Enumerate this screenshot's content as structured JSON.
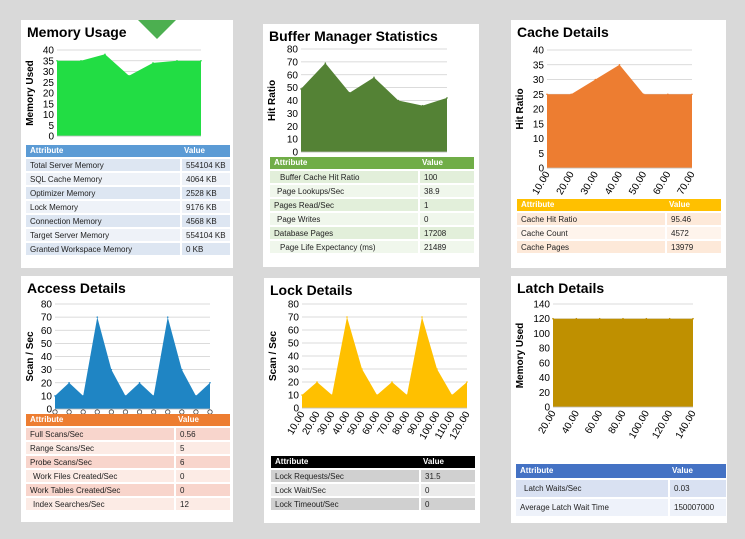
{
  "panels": {
    "memory": {
      "title": "Memory Usage",
      "accent": "#5b9bd5",
      "header": {
        "attribute": "Attribute",
        "value": "Value"
      },
      "rows": [
        {
          "attribute": "Total Server Memory",
          "value": "554104 KB"
        },
        {
          "attribute": "SQL Cache Memory",
          "value": "4064 KB"
        },
        {
          "attribute": "Optimizer Memory",
          "value": "2528 KB"
        },
        {
          "attribute": "Lock Memory",
          "value": "9176 KB"
        },
        {
          "attribute": "Connection Memory",
          "value": "4568 KB"
        },
        {
          "attribute": "Target Server Memory",
          "value": "554104 KB"
        },
        {
          "attribute": "Granted Workspace Memory",
          "value": "0 KB"
        }
      ]
    },
    "buffer": {
      "title": "Buffer Manager Statistics",
      "accent": "#70ad47",
      "header": {
        "attribute": "Attribute",
        "value": "Value"
      },
      "rows": [
        {
          "attribute": "Buffer Cache Hit Ratio",
          "value": "100"
        },
        {
          "attribute": "Page Lookups/Sec",
          "value": "38.9"
        },
        {
          "attribute": "Pages Read/Sec",
          "value": "1"
        },
        {
          "attribute": "Page Writes",
          "value": "0"
        },
        {
          "attribute": "Database Pages",
          "value": "17208"
        },
        {
          "attribute": "Page Life Expectancy (ms)",
          "value": "21489"
        }
      ]
    },
    "cache": {
      "title": "Cache Details",
      "accent": "#ffc000",
      "header": {
        "attribute": "Attribute",
        "value": "Value"
      },
      "rows": [
        {
          "attribute": "Cache Hit Ratio",
          "value": "95.46"
        },
        {
          "attribute": "Cache Count",
          "value": "4572"
        },
        {
          "attribute": "Cache Pages",
          "value": "13979"
        }
      ]
    },
    "access": {
      "title": "Access Details",
      "accent": "#ed7d31",
      "header": {
        "attribute": "Attribute",
        "value": "Value"
      },
      "rows": [
        {
          "attribute": "Full Scans/Sec",
          "value": "0.56"
        },
        {
          "attribute": "Range Scans/Sec",
          "value": "5"
        },
        {
          "attribute": "Probe Scans/Sec",
          "value": "6"
        },
        {
          "attribute": "Work Files Created/Sec",
          "value": "0"
        },
        {
          "attribute": "Work Tables Created/Sec",
          "value": "0"
        },
        {
          "attribute": "Index Searches/Sec",
          "value": "12"
        }
      ]
    },
    "lock": {
      "title": "Lock Details",
      "accent": "#000000",
      "header": {
        "attribute": "Attribute",
        "value": "Value"
      },
      "rows": [
        {
          "attribute": "Lock Requests/Sec",
          "value": "31.5"
        },
        {
          "attribute": "Lock Wait/Sec",
          "value": "0"
        },
        {
          "attribute": "Lock Timeout/Sec",
          "value": "0"
        }
      ]
    },
    "latch": {
      "title": "Latch Details",
      "accent": "#4472c4",
      "header": {
        "attribute": "Attribute",
        "value": "Value"
      },
      "rows": [
        {
          "attribute": "Latch Waits/Sec",
          "value": "0.03"
        },
        {
          "attribute": "Average Latch Wait Time",
          "value": "150007000"
        }
      ]
    }
  },
  "chart_data": [
    {
      "id": "memory",
      "type": "area",
      "title": "",
      "xlabel": "",
      "ylabel": "Memory Used",
      "ylim": [
        0,
        40
      ],
      "yticks": [
        0,
        5,
        10,
        15,
        20,
        25,
        30,
        35,
        40
      ],
      "xticks": [],
      "y": [
        35,
        35,
        38,
        28,
        34,
        35,
        35
      ],
      "color": "#22dd44",
      "grid": true
    },
    {
      "id": "buffer",
      "type": "area",
      "title": "",
      "xlabel": "",
      "ylabel": "Hit Ratio",
      "ylim": [
        0,
        80
      ],
      "yticks": [
        0,
        10,
        20,
        30,
        40,
        50,
        60,
        70,
        80
      ],
      "xticks": [],
      "y": [
        49,
        69,
        46,
        58,
        40,
        36,
        42
      ],
      "color": "#548235",
      "grid": true
    },
    {
      "id": "cache",
      "type": "area",
      "title": "",
      "xlabel": "",
      "ylabel": "Hit Ratio",
      "ylim": [
        0,
        40
      ],
      "yticks": [
        0,
        5,
        10,
        15,
        20,
        25,
        30,
        35,
        40
      ],
      "xticks": [
        "10.00",
        "20.00",
        "30.00",
        "40.00",
        "50.00",
        "60.00",
        "70.00"
      ],
      "y": [
        25,
        25,
        30,
        35,
        25,
        25,
        25
      ],
      "color": "#ed7d31",
      "grid": true
    },
    {
      "id": "access",
      "type": "area",
      "title": "",
      "xlabel": "",
      "ylabel": "Scan / Sec",
      "ylim": [
        0,
        80
      ],
      "yticks": [
        0,
        10,
        20,
        30,
        40,
        50,
        60,
        70,
        80
      ],
      "xticks": [
        "",
        "",
        "",
        "",
        "",
        "",
        "",
        "",
        "",
        "",
        "",
        ""
      ],
      "y": [
        10,
        20,
        10,
        70,
        30,
        10,
        20,
        10,
        70,
        30,
        10,
        20
      ],
      "color": "#1f85c4",
      "grid": true
    },
    {
      "id": "lock",
      "type": "area",
      "title": "",
      "xlabel": "",
      "ylabel": "Scan / Sec",
      "ylim": [
        0,
        80
      ],
      "yticks": [
        0,
        10,
        20,
        30,
        40,
        50,
        60,
        70,
        80
      ],
      "xticks": [
        "10.00",
        "20.00",
        "30.00",
        "40.00",
        "50.00",
        "60.00",
        "70.00",
        "80.00",
        "90.00",
        "100.00",
        "110.00",
        "120.00"
      ],
      "y": [
        10,
        20,
        10,
        70,
        30,
        10,
        20,
        10,
        70,
        30,
        10,
        20
      ],
      "color": "#ffc000",
      "grid": true
    },
    {
      "id": "latch",
      "type": "area",
      "title": "",
      "xlabel": "",
      "ylabel": "Memory Used",
      "ylim": [
        0,
        140
      ],
      "yticks": [
        0,
        20,
        40,
        60,
        80,
        100,
        120,
        140
      ],
      "xticks": [
        "20.00",
        "40.00",
        "60.00",
        "80.00",
        "100.00",
        "120.00",
        "140.00"
      ],
      "y": [
        120,
        120,
        120,
        120,
        120,
        120,
        120
      ],
      "color": "#bf9000",
      "grid": true
    }
  ]
}
